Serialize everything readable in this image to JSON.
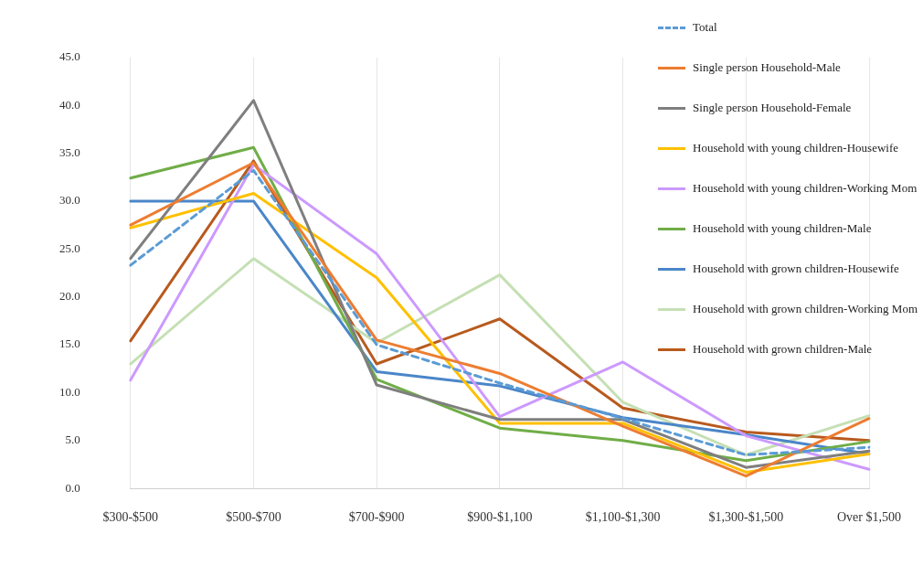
{
  "chart_data": {
    "type": "line",
    "categories": [
      "$300-$500",
      "$500-$700",
      "$700-$900",
      "$900-$1,100",
      "$1,100-$1,300",
      "$1,300-$1,500",
      "Over $1,500"
    ],
    "ylim": [
      0,
      45
    ],
    "yticks": [
      {
        "value": 0,
        "label": "0.0"
      },
      {
        "value": 5,
        "label": "5.0"
      },
      {
        "value": 10,
        "label": "10.0"
      },
      {
        "value": 15,
        "label": "15.0"
      },
      {
        "value": 20,
        "label": "20.0"
      },
      {
        "value": 25,
        "label": "25.0"
      },
      {
        "value": 30,
        "label": "30.0"
      },
      {
        "value": 35,
        "label": "35.0"
      },
      {
        "value": 40,
        "label": "40.0"
      },
      {
        "value": 45,
        "label": "45.0"
      }
    ],
    "grid": "x",
    "legend": "top right",
    "marker": "none",
    "series": [
      {
        "name": "Total",
        "color": "#5b9bd5",
        "line_style": "dashed",
        "values": [
          23.3,
          33.2,
          15.0,
          11.0,
          7.3,
          3.5,
          4.3
        ]
      },
      {
        "name": "Single person Household-Male",
        "color": "#ed7d31",
        "values": [
          27.5,
          34.0,
          15.5,
          12.0,
          6.5,
          1.3,
          7.3
        ]
      },
      {
        "name": "Single person Household-Female",
        "color": "#7f7f7f",
        "values": [
          24.0,
          40.5,
          10.8,
          7.2,
          7.2,
          2.2,
          3.9
        ]
      },
      {
        "name": "Household with young children-Housewife",
        "color": "#ffc000",
        "values": [
          27.2,
          30.8,
          22.0,
          6.8,
          6.8,
          1.7,
          3.6
        ]
      },
      {
        "name": "Household with young children-Working Mom",
        "color": "#cc99ff",
        "values": [
          11.3,
          33.8,
          24.5,
          7.5,
          13.2,
          5.5,
          2.0
        ]
      },
      {
        "name": "Household with young children-Male",
        "color": "#70ad47",
        "values": [
          32.4,
          35.6,
          11.4,
          6.3,
          5.0,
          2.9,
          4.9
        ]
      },
      {
        "name": "Household with grown children-Housewife",
        "color": "#4a86c8",
        "values": [
          30.0,
          30.0,
          12.2,
          10.7,
          7.4,
          5.6,
          3.6
        ]
      },
      {
        "name": "Household with grown children-Working Mom",
        "color": "#c5e0b4",
        "values": [
          13.0,
          24.0,
          15.2,
          22.3,
          9.0,
          3.5,
          7.6
        ]
      },
      {
        "name": "Household with grown children-Male",
        "color": "#b85a1e",
        "values": [
          15.4,
          34.2,
          13.0,
          17.7,
          8.4,
          5.9,
          5.0
        ]
      }
    ]
  }
}
